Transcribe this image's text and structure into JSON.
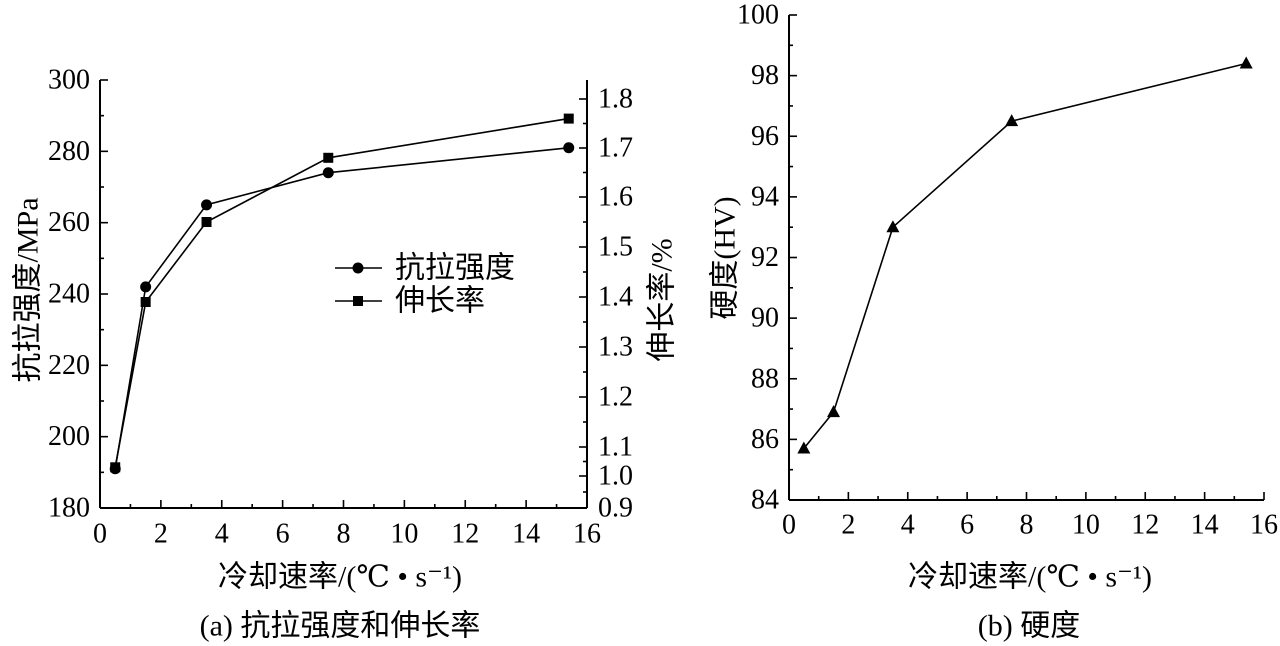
{
  "chart_data": [
    {
      "type": "line",
      "caption": "(a) 抗拉强度和伸长率",
      "xlabel": "冷却速率/(℃ • s⁻¹)",
      "xlim": [
        0,
        16
      ],
      "xticks": [
        "0",
        "2",
        "4",
        "6",
        "8",
        "10",
        "12",
        "14",
        "16"
      ],
      "x": [
        0.5,
        1.5,
        3.5,
        7.5,
        15.4
      ],
      "ylabel": "抗拉强度/MPa",
      "ylim": [
        180,
        300
      ],
      "yticks": [
        "180",
        "200",
        "220",
        "240",
        "260",
        "280",
        "300"
      ],
      "y2label": "伸长率/%",
      "y2lim": [
        0.9,
        1.8
      ],
      "y2ticks": [
        "0.9",
        "1.0",
        "1.1",
        "1.2",
        "1.3",
        "1.4",
        "1.5",
        "1.6",
        "1.7",
        "1.8"
      ],
      "series": [
        {
          "name": "抗拉强度",
          "axis": "left",
          "marker": "circle",
          "color": "#000000",
          "values": [
            191,
            242,
            265,
            274,
            281
          ]
        },
        {
          "name": "伸长率",
          "axis": "right",
          "marker": "square",
          "color": "#000000",
          "values": [
            1.03,
            1.39,
            1.55,
            1.68,
            1.76
          ]
        }
      ],
      "legend": "center-right",
      "grid": false
    },
    {
      "type": "line",
      "caption": "(b) 硬度",
      "xlabel": "冷却速率/(℃ • s⁻¹)",
      "xlim": [
        0,
        16
      ],
      "xticks": [
        "0",
        "2",
        "4",
        "6",
        "8",
        "10",
        "12",
        "14",
        "16"
      ],
      "x": [
        0.5,
        1.5,
        3.5,
        7.5,
        15.4
      ],
      "ylabel": "硬度(HV)",
      "ylim": [
        84,
        100
      ],
      "yticks": [
        "84",
        "86",
        "88",
        "90",
        "92",
        "94",
        "96",
        "98",
        "100"
      ],
      "series": [
        {
          "marker": "triangle",
          "color": "#000000",
          "values": [
            85.7,
            86.9,
            93.0,
            96.5,
            98.4
          ]
        }
      ],
      "grid": false
    }
  ]
}
